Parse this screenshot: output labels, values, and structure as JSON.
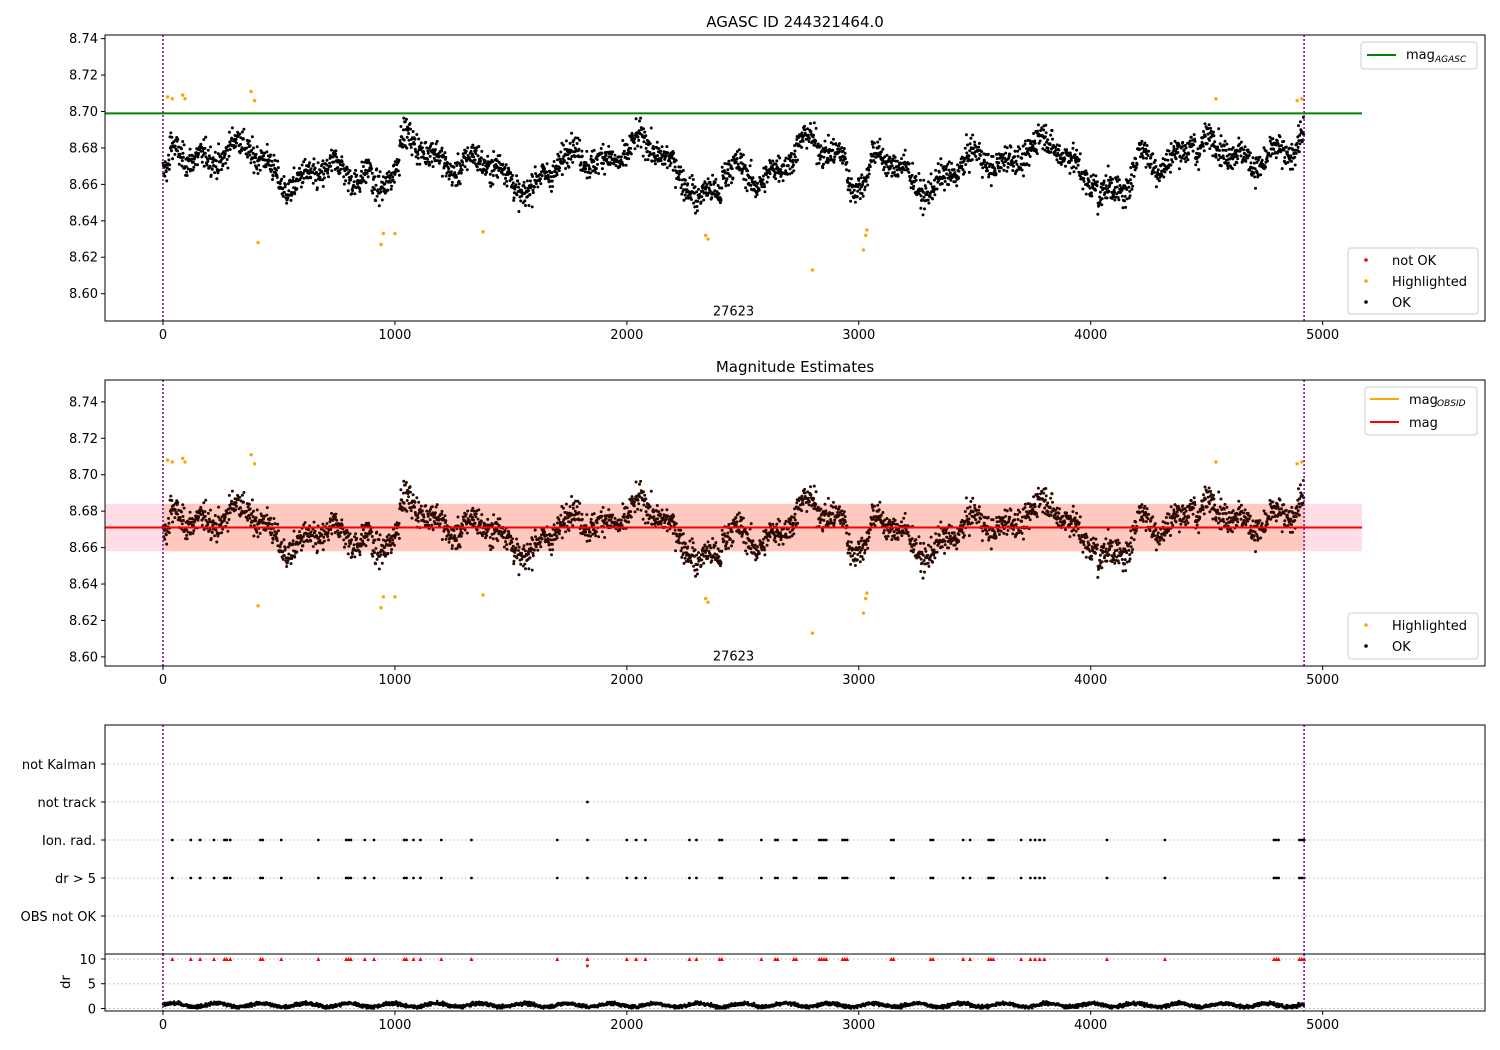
{
  "chart_data": [
    {
      "type": "scatter",
      "title": "AGASC ID 244321464.0",
      "xlim": [
        -250,
        5700
      ],
      "ylim": [
        8.585,
        8.742
      ],
      "xticks": [
        0,
        1000,
        2000,
        3000,
        4000,
        5000
      ],
      "yticks": [
        8.6,
        8.62,
        8.64,
        8.66,
        8.68,
        8.7,
        8.72,
        8.74
      ],
      "vlines": [
        0,
        4920
      ],
      "obsid_label": "27623",
      "obsid_label_pos": [
        2460,
        8.588
      ],
      "hline": {
        "name": "mag",
        "sub": "AGASC",
        "value": 8.699,
        "x_range": [
          -250,
          5170
        ],
        "color": "#008000"
      },
      "legend_top": "top-right",
      "legend_bottom": "lower-right",
      "legend_bottom_entries": [
        {
          "name": "not OK",
          "color": "#ff0000"
        },
        {
          "name": "Highlighted",
          "color": "#ffa500"
        },
        {
          "name": "OK",
          "color": "#000000"
        }
      ],
      "x_range": [
        0,
        4920
      ],
      "highlighted_points": [
        [
          20,
          8.708
        ],
        [
          40,
          8.707
        ],
        [
          85,
          8.709
        ],
        [
          95,
          8.707
        ],
        [
          380,
          8.711
        ],
        [
          395,
          8.706
        ],
        [
          410,
          8.628
        ],
        [
          940,
          8.627
        ],
        [
          950,
          8.633
        ],
        [
          1000,
          8.633
        ],
        [
          1380,
          8.634
        ],
        [
          2340,
          8.632
        ],
        [
          2350,
          8.63
        ],
        [
          2800,
          8.613
        ],
        [
          3020,
          8.624
        ],
        [
          3030,
          8.632
        ],
        [
          3035,
          8.635
        ],
        [
          4540,
          8.707
        ],
        [
          4890,
          8.706
        ],
        [
          4910,
          8.707
        ]
      ]
    },
    {
      "type": "scatter",
      "title": "Magnitude Estimates",
      "xlim": [
        -250,
        5700
      ],
      "ylim": [
        8.595,
        8.752
      ],
      "xticks": [
        0,
        1000,
        2000,
        3000,
        4000,
        5000
      ],
      "yticks": [
        8.6,
        8.62,
        8.64,
        8.66,
        8.68,
        8.7,
        8.72,
        8.74
      ],
      "vlines": [
        0,
        4920
      ],
      "obsid_label": "27623",
      "obsid_label_pos": [
        2460,
        8.598
      ],
      "mean_line": {
        "name": "mag",
        "value": 8.671,
        "color": "#ff0000"
      },
      "obsid_line": {
        "name": "mag",
        "sub": "OBSID",
        "color": "#ffa500"
      },
      "band": [
        8.658,
        8.684
      ],
      "band_x_range": [
        -250,
        5170
      ],
      "legend_top": "top-right",
      "legend_bottom": "lower-right",
      "legend_bottom_entries": [
        {
          "name": "Highlighted",
          "color": "#ffa500"
        },
        {
          "name": "OK",
          "color": "#000000"
        }
      ]
    },
    {
      "type": "scatter",
      "title": "",
      "xlim": [
        -250,
        5700
      ],
      "xticks": [
        0,
        1000,
        2000,
        3000,
        4000,
        5000
      ],
      "flag_labels": [
        "not Kalman",
        "not track",
        "Ion. rad.",
        "dr > 5",
        "OBS not OK"
      ],
      "vlines": [
        0,
        4920
      ],
      "not_track_x": [
        1830
      ],
      "ion_rad_x": [
        40,
        120,
        160,
        220,
        265,
        275,
        290,
        420,
        430,
        510,
        670,
        790,
        800,
        810,
        870,
        910,
        1040,
        1050,
        1080,
        1110,
        1200,
        1330,
        1700,
        1830,
        2000,
        2040,
        2080,
        2270,
        2300,
        2400,
        2410,
        2580,
        2640,
        2650,
        2720,
        2730,
        2830,
        2840,
        2850,
        2860,
        2930,
        2940,
        2950,
        3140,
        3150,
        3310,
        3320,
        3450,
        3480,
        3560,
        3570,
        3580,
        3700,
        3740,
        3760,
        3780,
        3800,
        4070,
        4320,
        4790,
        4800,
        4810,
        4900,
        4910,
        4920
      ],
      "dr_panel": {
        "ylabel": "dr",
        "yticks": [
          0,
          5,
          10
        ],
        "ylim": [
          -0.5,
          11
        ],
        "dr_line": 10,
        "red_marker_y": 10
      },
      "dr_red_extra": [
        [
          1830,
          8.6
        ]
      ]
    }
  ]
}
